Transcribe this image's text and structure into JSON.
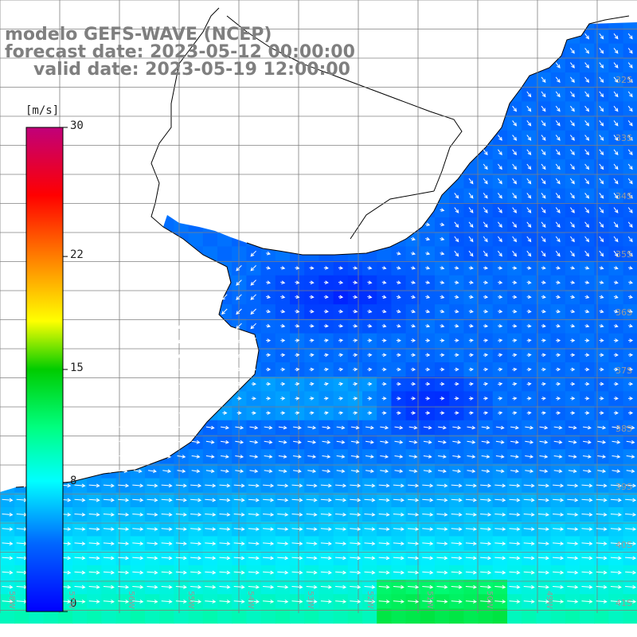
{
  "title": {
    "line1": "modelo GEFS-WAVE (NCEP)",
    "line2": "forecast date: 2023-05-12 00:00:00",
    "line3": "valid date: 2023-05-19 12:00:00"
  },
  "colorbar": {
    "unit": "[m/s]",
    "ticks": [
      "30",
      "22",
      "15",
      "8",
      "0"
    ],
    "tick_values": [
      30,
      22,
      15,
      8,
      0
    ],
    "min": 0,
    "max": 30
  },
  "lat_labels": [
    "32S",
    "33S",
    "34S",
    "35S",
    "36S",
    "37S",
    "38S",
    "39S",
    "40S",
    "41S"
  ],
  "lon_labels": [
    "58W",
    "57W",
    "56W",
    "55W",
    "54W",
    "53W",
    "52W",
    "51W",
    "50W",
    "49W"
  ],
  "colors": {
    "land": "#ffffff",
    "coast": "#000000",
    "grid": "#808080",
    "arrow": "#ffffff",
    "title": "#7f7f7f"
  }
}
